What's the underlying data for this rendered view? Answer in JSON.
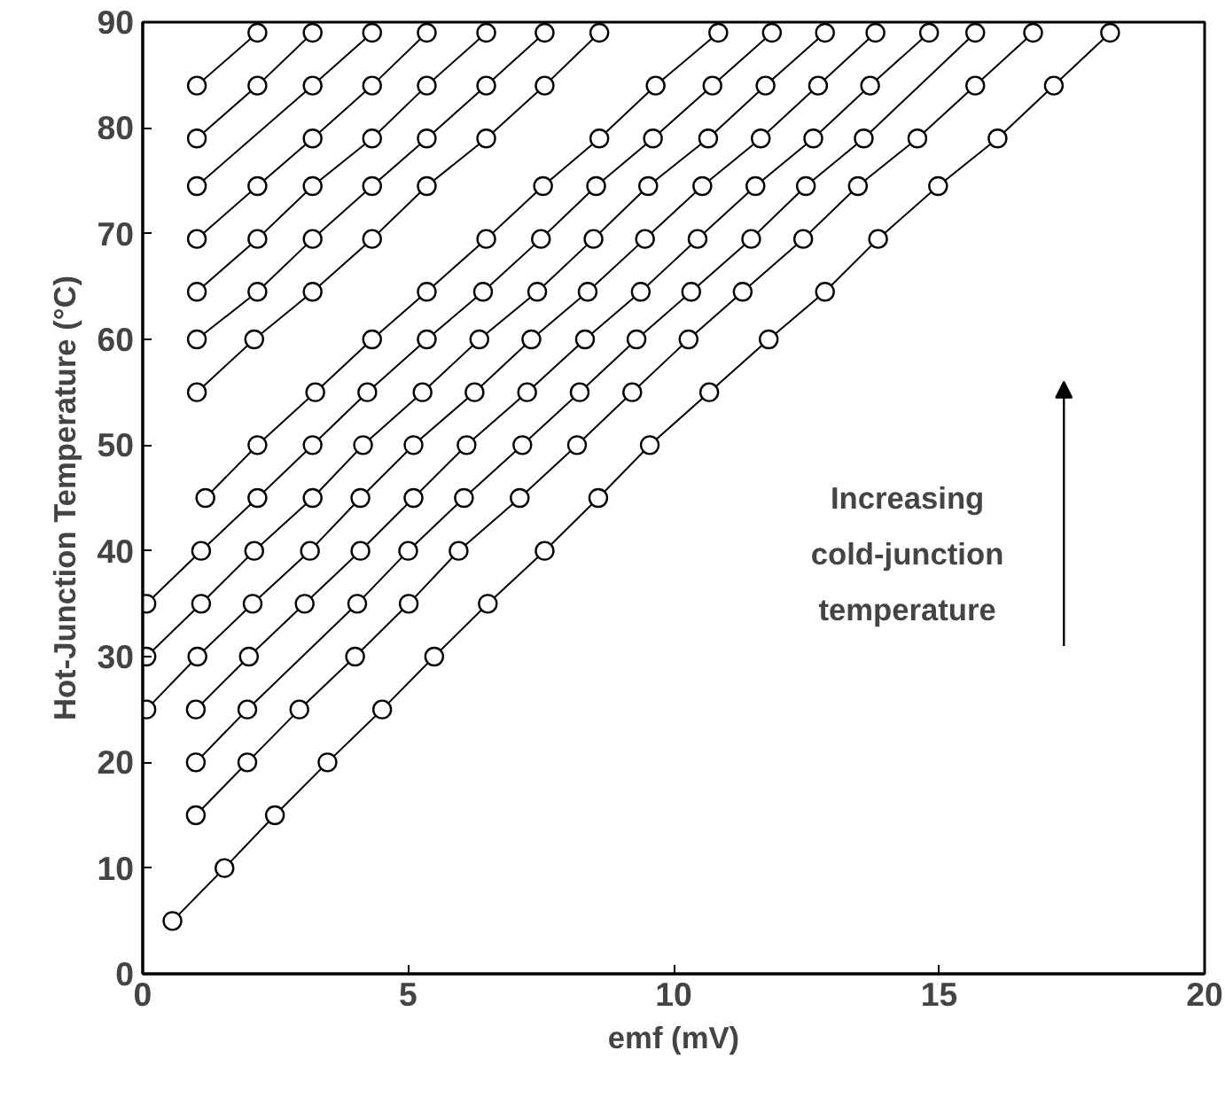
{
  "chart_data": {
    "type": "line",
    "xlabel": "emf (mV)",
    "ylabel": "Hot-Junction Temperature (°C)",
    "annotations": [
      "Increasing cold-junction temperature"
    ],
    "xlim": [
      0,
      20
    ],
    "ylim": [
      0,
      90
    ],
    "xticks": [
      0,
      5,
      10,
      15,
      20
    ],
    "yticks": [
      0,
      10,
      20,
      30,
      40,
      50,
      60,
      70,
      80,
      90
    ],
    "marker": "circle",
    "line_style": "solid",
    "series": [
      {
        "color": "#000000",
        "x": [
          0.56,
          1.54,
          2.49,
          3.48,
          4.51,
          5.49,
          6.5,
          7.57,
          8.58,
          9.55,
          10.67,
          11.79,
          12.85,
          13.85,
          14.98,
          16.1,
          17.16,
          18.22
        ],
        "values": [
          5,
          10,
          15,
          20,
          25,
          30,
          35,
          40,
          45,
          50,
          55,
          60,
          64.5,
          69.5,
          74.5,
          79,
          84,
          89
        ]
      },
      {
        "color": "#000000",
        "x": [
          1.0,
          1.97,
          2.95,
          4.0,
          5.01,
          5.95,
          7.1,
          8.18,
          9.22,
          10.28,
          11.3,
          12.44,
          13.47,
          14.59,
          15.68,
          16.77
        ],
        "values": [
          15,
          20,
          25,
          30,
          35,
          40,
          45,
          50,
          55,
          60,
          64.5,
          69.5,
          74.5,
          79,
          84,
          89
        ]
      },
      {
        "color": "#000000",
        "x": [
          1.0,
          1.97,
          4.04,
          5.0,
          6.05,
          7.15,
          8.23,
          9.3,
          10.33,
          11.46,
          12.49,
          13.58,
          15.68
        ],
        "values": [
          20,
          25,
          35,
          40,
          45,
          50,
          55,
          60,
          64.5,
          69.5,
          74.5,
          79,
          89
        ]
      },
      {
        "color": "#000000",
        "x": [
          0.07,
          1.03,
          2.07,
          3.15,
          4.1,
          5.1,
          6.25,
          7.32,
          8.38,
          9.46,
          10.54,
          11.64,
          12.72,
          13.8
        ],
        "values": [
          25,
          30,
          35,
          40,
          45,
          50,
          55,
          60,
          64.5,
          69.5,
          74.5,
          79,
          84,
          89
        ]
      },
      {
        "color": "#000000",
        "x": [
          1.0,
          2.0,
          3.05,
          4.1,
          5.1,
          6.1,
          7.24,
          8.33,
          9.38,
          10.45,
          11.54,
          12.63,
          13.7,
          14.81
        ],
        "values": [
          25,
          30,
          35,
          40,
          45,
          50,
          55,
          60,
          64.5,
          69.5,
          74.5,
          79,
          84,
          89
        ]
      },
      {
        "color": "#000000",
        "x": [
          0.07,
          1.1,
          2.1,
          3.2,
          4.15,
          5.27,
          6.34,
          7.43,
          8.49,
          9.52,
          10.65,
          11.73,
          12.85
        ],
        "values": [
          30,
          35,
          40,
          45,
          50,
          55,
          60,
          64.5,
          69.5,
          74.5,
          79,
          84,
          89
        ]
      },
      {
        "color": "#000000",
        "x": [
          0.07,
          1.1,
          2.16,
          3.2,
          4.23,
          5.35,
          6.41,
          7.5,
          8.54,
          9.61,
          10.73,
          11.85
        ],
        "values": [
          35,
          40,
          45,
          50,
          55,
          60,
          64.5,
          69.5,
          74.5,
          79,
          84,
          89
        ]
      },
      {
        "color": "#000000",
        "x": [
          1.18,
          2.16,
          3.25,
          4.32,
          5.35,
          6.47,
          7.54,
          8.6,
          9.66,
          10.84
        ],
        "values": [
          45,
          50,
          55,
          60,
          64.5,
          69.5,
          74.5,
          79,
          84,
          89
        ]
      },
      {
        "color": "#000000",
        "x": [
          1.02,
          2.1,
          3.2,
          4.32,
          5.35,
          6.47,
          7.57,
          8.6
        ],
        "values": [
          55,
          60,
          64.5,
          69.5,
          74.5,
          79,
          84,
          89
        ]
      },
      {
        "color": "#000000",
        "x": [
          1.02,
          2.16,
          3.2,
          4.32,
          5.35,
          6.47,
          7.57
        ],
        "values": [
          60,
          64.5,
          69.5,
          74.5,
          79,
          84,
          89
        ]
      },
      {
        "color": "#000000",
        "x": [
          1.02,
          2.16,
          3.2,
          4.32,
          5.35,
          6.47
        ],
        "values": [
          64.5,
          69.5,
          74.5,
          79,
          84,
          89
        ]
      },
      {
        "color": "#000000",
        "x": [
          1.02,
          2.16,
          3.2,
          4.32,
          5.35
        ],
        "values": [
          69.5,
          74.5,
          79,
          84,
          89
        ]
      },
      {
        "color": "#000000",
        "x": [
          1.02,
          3.2,
          4.32
        ],
        "values": [
          74.5,
          84,
          89
        ]
      },
      {
        "color": "#000000",
        "x": [
          1.02,
          2.16,
          3.2
        ],
        "values": [
          79,
          84,
          89
        ]
      },
      {
        "color": "#000000",
        "x": [
          1.02,
          2.16
        ],
        "values": [
          84,
          89
        ]
      }
    ]
  }
}
